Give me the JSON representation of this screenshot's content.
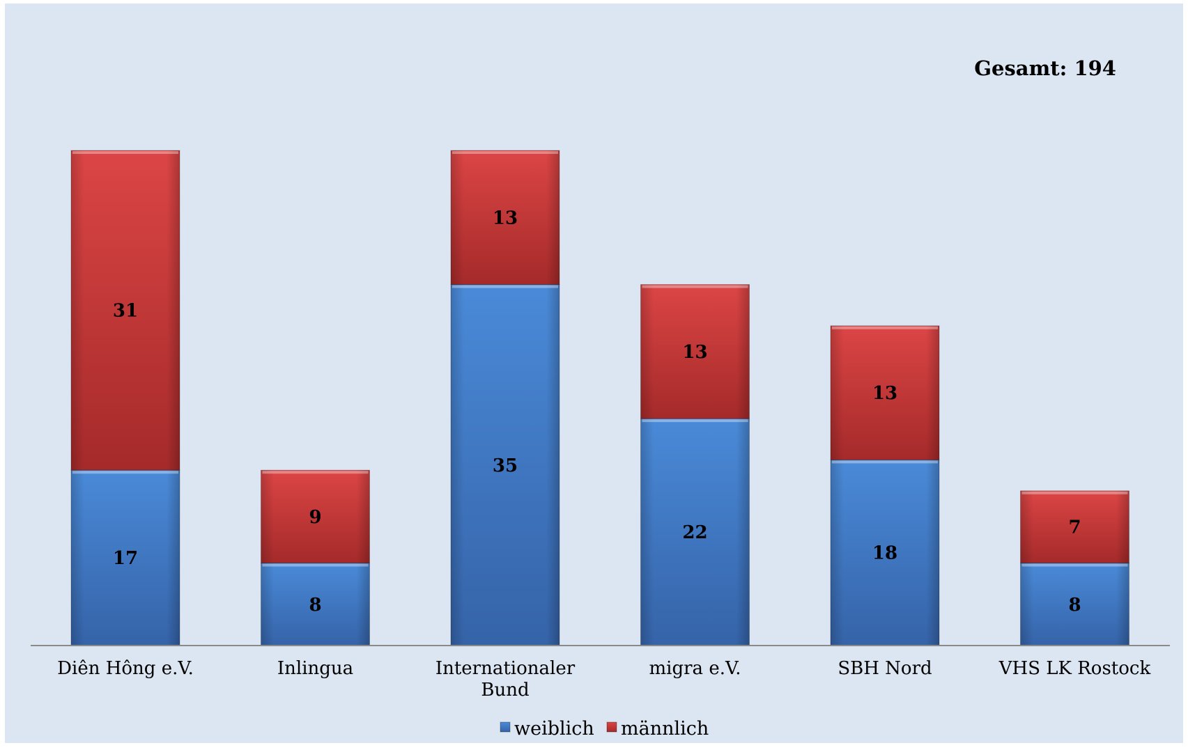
{
  "chart_data": {
    "type": "bar",
    "stacked": true,
    "categories": [
      "Diên Hông e.V.",
      "Inlingua",
      "Internationaler Bund",
      "migra e.V.",
      "SBH Nord",
      "VHS LK Rostock"
    ],
    "category_lines": [
      [
        "Diên Hông e.V."
      ],
      [
        "Inlingua"
      ],
      [
        "Internationaler",
        "Bund"
      ],
      [
        "migra e.V."
      ],
      [
        "SBH Nord"
      ],
      [
        "VHS LK Rostock"
      ]
    ],
    "series": [
      {
        "name": "weiblich",
        "values": [
          17,
          8,
          35,
          22,
          18,
          8
        ],
        "color": "#3a78c8"
      },
      {
        "name": "männlich",
        "values": [
          31,
          9,
          13,
          13,
          13,
          7
        ],
        "color": "#c0393a"
      }
    ],
    "ylim": [
      0,
      56
    ],
    "annotation": "Gesamt: 194",
    "legend_position": "bottom",
    "grid": false
  }
}
